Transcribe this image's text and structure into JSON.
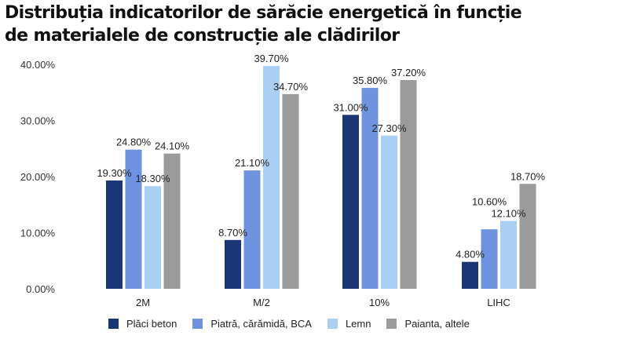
{
  "chart_data": {
    "type": "bar",
    "title": "Distribuția indicatorilor de sărăcie energetică în funcție de materialele de construcție ale clădirilor",
    "categories": [
      "2M",
      "M/2",
      "10%",
      "LIHC"
    ],
    "series": [
      {
        "name": "Plăci beton",
        "color": "#1b3674",
        "values": [
          19.3,
          8.7,
          31.0,
          4.8
        ],
        "labels": [
          "19.30%",
          "8.70%",
          "31.00%",
          "4.80%"
        ]
      },
      {
        "name": "Piatră, cărămidă, BCA",
        "color": "#6f93df",
        "values": [
          24.8,
          21.1,
          35.8,
          10.6
        ],
        "labels": [
          "24.80%",
          "21.10%",
          "35.80%",
          "10.60%"
        ]
      },
      {
        "name": "Lemn",
        "color": "#abcff2",
        "values": [
          18.3,
          39.7,
          27.3,
          12.1
        ],
        "labels": [
          "18.30%",
          "39.70%",
          "27.30%",
          "12.10%"
        ]
      },
      {
        "name": "Paianta, altele",
        "color": "#9b9b9b",
        "values": [
          24.1,
          34.7,
          37.2,
          18.7
        ],
        "labels": [
          "24.10%",
          "34.70%",
          "37.20%",
          "18.70%"
        ]
      }
    ],
    "yticks": [
      "0.00%",
      "10.00%",
      "20.00%",
      "30.00%",
      "40.00%"
    ],
    "ylim": [
      0,
      40
    ],
    "grid": false,
    "legend": "bottom"
  }
}
